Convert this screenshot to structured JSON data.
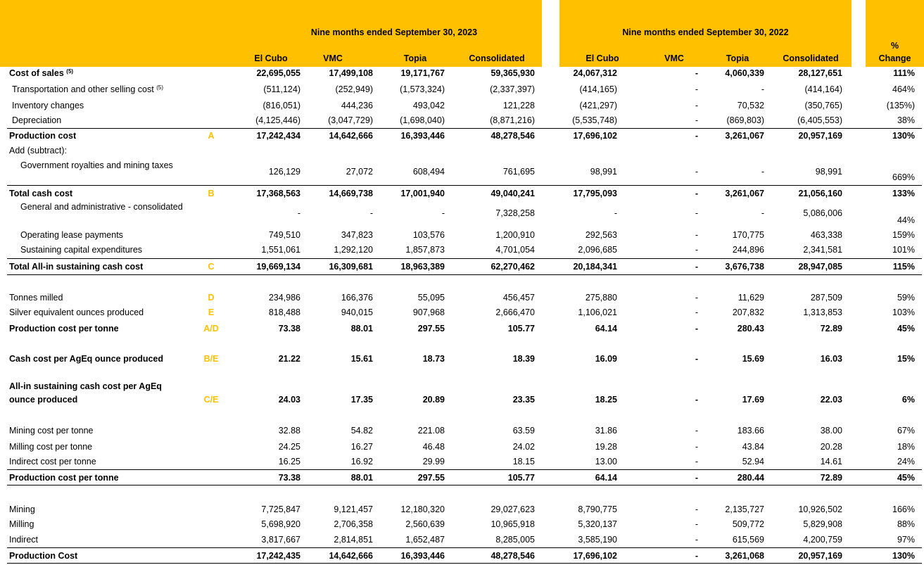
{
  "header": {
    "period_2023": "Nine months ended September 30, 2023",
    "period_2022": "Nine months ended September 30, 2022",
    "change_title": "%",
    "change_subtitle": "Change"
  },
  "columns": [
    "El Cubo",
    "VMC",
    "Topia",
    "Consolidated",
    "El Cubo",
    "VMC",
    "Topia",
    "Consolidated"
  ],
  "rows": [
    {
      "label": "Cost of sales",
      "note": "(5)",
      "values": [
        "22,695,055",
        "17,499,108",
        "19,171,767",
        "59,365,930",
        "24,067,312",
        "-",
        "4,060,339",
        "28,127,651"
      ],
      "change": "111%",
      "bold": true
    },
    {
      "label": "Transportation and other selling cost",
      "note": "(5)",
      "values": [
        "(511,124)",
        "(252,949)",
        "(1,573,324)",
        "(2,337,397)",
        "(414,165)",
        "-",
        "-",
        "(414,164)"
      ],
      "change": "464%"
    },
    {
      "label": "Inventory changes",
      "values": [
        "(816,051)",
        "444,236",
        "493,042",
        "121,228",
        "(421,297)",
        "-",
        "70,532",
        "(350,765)"
      ],
      "change": "(135%)"
    },
    {
      "label": "Depreciation",
      "values": [
        "(4,125,446)",
        "(3,047,729)",
        "(1,698,040)",
        "(8,871,216)",
        "(5,535,748)",
        "-",
        "(869,803)",
        "(6,405,553)"
      ],
      "change": "38%"
    },
    {
      "label": "Production cost",
      "ref": "A",
      "values": [
        "17,242,434",
        "14,642,666",
        "16,393,446",
        "48,278,546",
        "17,696,102",
        "-",
        "3,261,067",
        "20,957,169"
      ],
      "change": "130%",
      "bold": true
    },
    {
      "label": "Add (subtract):"
    },
    {
      "label": "Government royalties and mining taxes",
      "values": [
        "126,129",
        "27,072",
        "608,494",
        "761,695",
        "98,991",
        "-",
        "-",
        "98,991"
      ],
      "change": "669%"
    },
    {
      "label": "Total cash cost",
      "ref": "B",
      "values": [
        "17,368,563",
        "14,669,738",
        "17,001,940",
        "49,040,241",
        "17,795,093",
        "-",
        "3,261,067",
        "21,056,160"
      ],
      "change": "133%",
      "bold": true
    },
    {
      "label": "General and administrative - consolidated",
      "values": [
        "-",
        "-",
        "-",
        "7,328,258",
        "-",
        "-",
        "-",
        "5,086,006"
      ],
      "change": "44%"
    },
    {
      "label": "Operating lease payments",
      "values": [
        "749,510",
        "347,823",
        "103,576",
        "1,200,910",
        "292,563",
        "-",
        "170,775",
        "463,338"
      ],
      "change": "159%"
    },
    {
      "label": "Sustaining capital expenditures",
      "values": [
        "1,551,061",
        "1,292,120",
        "1,857,873",
        "4,701,054",
        "2,096,685",
        "-",
        "244,896",
        "2,341,581"
      ],
      "change": "101%"
    },
    {
      "label": "Total All-in sustaining cash cost",
      "ref": "C",
      "values": [
        "19,669,134",
        "16,309,681",
        "18,963,389",
        "62,270,462",
        "20,184,341",
        "-",
        "3,676,738",
        "28,947,085"
      ],
      "change": "115%",
      "bold": true
    },
    {
      "label": "Tonnes milled",
      "ref": "D",
      "values": [
        "234,986",
        "166,376",
        "55,095",
        "456,457",
        "275,880",
        "-",
        "11,629",
        "287,509"
      ],
      "change": "59%"
    },
    {
      "label": "Silver equivalent ounces produced",
      "ref": "E",
      "values": [
        "818,488",
        "940,015",
        "907,968",
        "2,666,470",
        "1,106,021",
        "-",
        "207,832",
        "1,313,853"
      ],
      "change": "103%"
    },
    {
      "label": "Production cost per tonne",
      "ref": "A/D",
      "values": [
        "73.38",
        "88.01",
        "297.55",
        "105.77",
        "64.14",
        "-",
        "280.43",
        "72.89"
      ],
      "change": "45%",
      "bold": true
    },
    {
      "label": "Cash cost per AgEq ounce produced",
      "ref": "B/E",
      "values": [
        "21.22",
        "15.61",
        "18.73",
        "18.39",
        "16.09",
        "-",
        "15.69",
        "16.03"
      ],
      "change": "15%",
      "bold": true
    },
    {
      "label": "All-in sustaining cash cost per AgEq ounce produced",
      "ref": "C/E",
      "values": [
        "24.03",
        "17.35",
        "20.89",
        "23.35",
        "18.25",
        "-",
        "17.69",
        "22.03"
      ],
      "change": "6%",
      "bold": true
    },
    {
      "label": "Mining cost per tonne",
      "values": [
        "32.88",
        "54.82",
        "221.08",
        "63.59",
        "31.86",
        "-",
        "183.66",
        "38.00"
      ],
      "change": "67%"
    },
    {
      "label": "Milling cost per tonne",
      "values": [
        "24.25",
        "16.27",
        "46.48",
        "24.02",
        "19.28",
        "-",
        "43.84",
        "20.28"
      ],
      "change": "18%"
    },
    {
      "label": "Indirect cost per tonne",
      "values": [
        "16.25",
        "16.92",
        "29.99",
        "18.15",
        "13.00",
        "-",
        "52.94",
        "14.61"
      ],
      "change": "24%"
    },
    {
      "label": "Production cost per tonne",
      "values": [
        "73.38",
        "88.01",
        "297.55",
        "105.77",
        "64.14",
        "-",
        "280.44",
        "72.89"
      ],
      "change": "45%",
      "bold": true
    },
    {
      "label": "Mining",
      "values": [
        "7,725,847",
        "9,121,457",
        "12,180,320",
        "29,027,623",
        "8,790,775",
        "-",
        "2,135,727",
        "10,926,502"
      ],
      "change": "166%"
    },
    {
      "label": "Milling",
      "values": [
        "5,698,920",
        "2,706,358",
        "2,560,639",
        "10,965,918",
        "5,320,137",
        "-",
        "509,772",
        "5,829,908"
      ],
      "change": "88%"
    },
    {
      "label": "Indirect",
      "values": [
        "3,817,667",
        "2,814,851",
        "1,652,487",
        "8,285,005",
        "3,585,190",
        "-",
        "615,569",
        "4,200,759"
      ],
      "change": "97%"
    },
    {
      "label": "Production Cost",
      "values": [
        "17,242,435",
        "14,642,666",
        "16,393,446",
        "48,278,546",
        "17,696,102",
        "-",
        "3,261,068",
        "20,957,169"
      ],
      "change": "130%",
      "bold": true
    }
  ]
}
